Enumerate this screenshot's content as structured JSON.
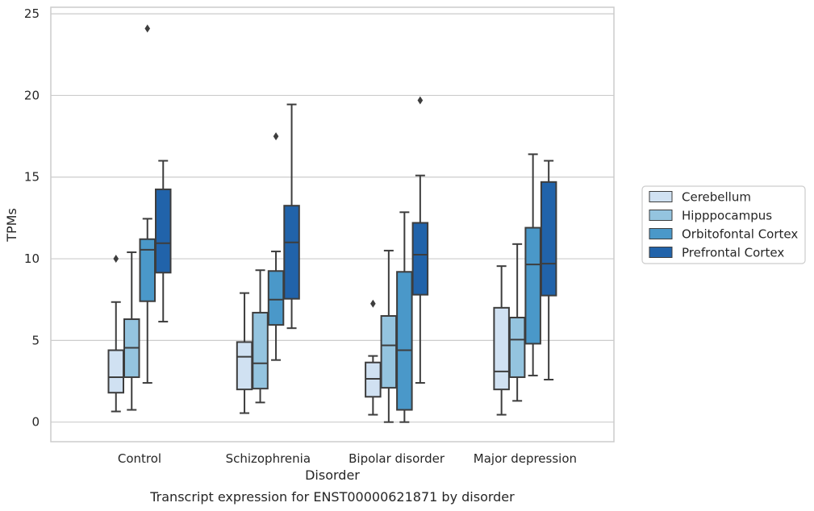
{
  "chart_data": {
    "type": "boxplot",
    "caption": "Transcript expression for ENST00000621871 by disorder",
    "xlabel": "Disorder",
    "ylabel": "TPMs",
    "ylim": [
      -1.2,
      25.4
    ],
    "yticks": [
      0,
      5,
      10,
      15,
      20,
      25
    ],
    "grid": "horizontal",
    "legend_position": "right",
    "categories": [
      "Control",
      "Schizophrenia",
      "Bipolar disorder",
      "Major depression"
    ],
    "series": [
      {
        "name": "Cerebellum",
        "color": "#d0e1f2",
        "boxes": [
          {
            "whisker_low": 0.65,
            "q1": 1.8,
            "median": 2.75,
            "q3": 4.4,
            "whisker_high": 7.35,
            "outliers": [
              10.0
            ]
          },
          {
            "whisker_low": 0.55,
            "q1": 2.0,
            "median": 4.0,
            "q3": 4.9,
            "whisker_high": 7.9,
            "outliers": []
          },
          {
            "whisker_low": 0.45,
            "q1": 1.55,
            "median": 2.65,
            "q3": 3.65,
            "whisker_high": 4.05,
            "outliers": [
              7.25
            ]
          },
          {
            "whisker_low": 0.45,
            "q1": 2.0,
            "median": 3.1,
            "q3": 7.0,
            "whisker_high": 9.55,
            "outliers": []
          }
        ]
      },
      {
        "name": "Hipppocampus",
        "color": "#94c4df",
        "boxes": [
          {
            "whisker_low": 0.75,
            "q1": 2.75,
            "median": 4.55,
            "q3": 6.3,
            "whisker_high": 10.4,
            "outliers": []
          },
          {
            "whisker_low": 1.2,
            "q1": 2.05,
            "median": 3.6,
            "q3": 6.7,
            "whisker_high": 9.3,
            "outliers": []
          },
          {
            "whisker_low": 0.0,
            "q1": 2.1,
            "median": 4.7,
            "q3": 6.5,
            "whisker_high": 10.5,
            "outliers": []
          },
          {
            "whisker_low": 1.3,
            "q1": 2.75,
            "median": 5.05,
            "q3": 6.4,
            "whisker_high": 10.9,
            "outliers": []
          }
        ]
      },
      {
        "name": "Orbitofontal Cortex",
        "color": "#4a98c9",
        "boxes": [
          {
            "whisker_low": 2.4,
            "q1": 7.4,
            "median": 10.55,
            "q3": 11.2,
            "whisker_high": 12.45,
            "outliers": [
              24.1
            ]
          },
          {
            "whisker_low": 3.8,
            "q1": 5.95,
            "median": 7.5,
            "q3": 9.25,
            "whisker_high": 10.45,
            "outliers": [
              17.5
            ]
          },
          {
            "whisker_low": 0.0,
            "q1": 0.75,
            "median": 4.4,
            "q3": 9.2,
            "whisker_high": 12.85,
            "outliers": []
          },
          {
            "whisker_low": 2.85,
            "q1": 4.8,
            "median": 9.65,
            "q3": 11.9,
            "whisker_high": 16.4,
            "outliers": []
          }
        ]
      },
      {
        "name": "Prefrontal Cortex",
        "color": "#2163aa",
        "boxes": [
          {
            "whisker_low": 6.15,
            "q1": 9.15,
            "median": 10.95,
            "q3": 14.25,
            "whisker_high": 16.0,
            "outliers": []
          },
          {
            "whisker_low": 5.75,
            "q1": 7.55,
            "median": 11.0,
            "q3": 13.25,
            "whisker_high": 19.45,
            "outliers": []
          },
          {
            "whisker_low": 2.4,
            "q1": 7.8,
            "median": 10.25,
            "q3": 12.2,
            "whisker_high": 15.1,
            "outliers": [
              19.7
            ]
          },
          {
            "whisker_low": 2.6,
            "q1": 7.75,
            "median": 9.7,
            "q3": 14.7,
            "whisker_high": 16.0,
            "outliers": []
          }
        ]
      }
    ]
  }
}
